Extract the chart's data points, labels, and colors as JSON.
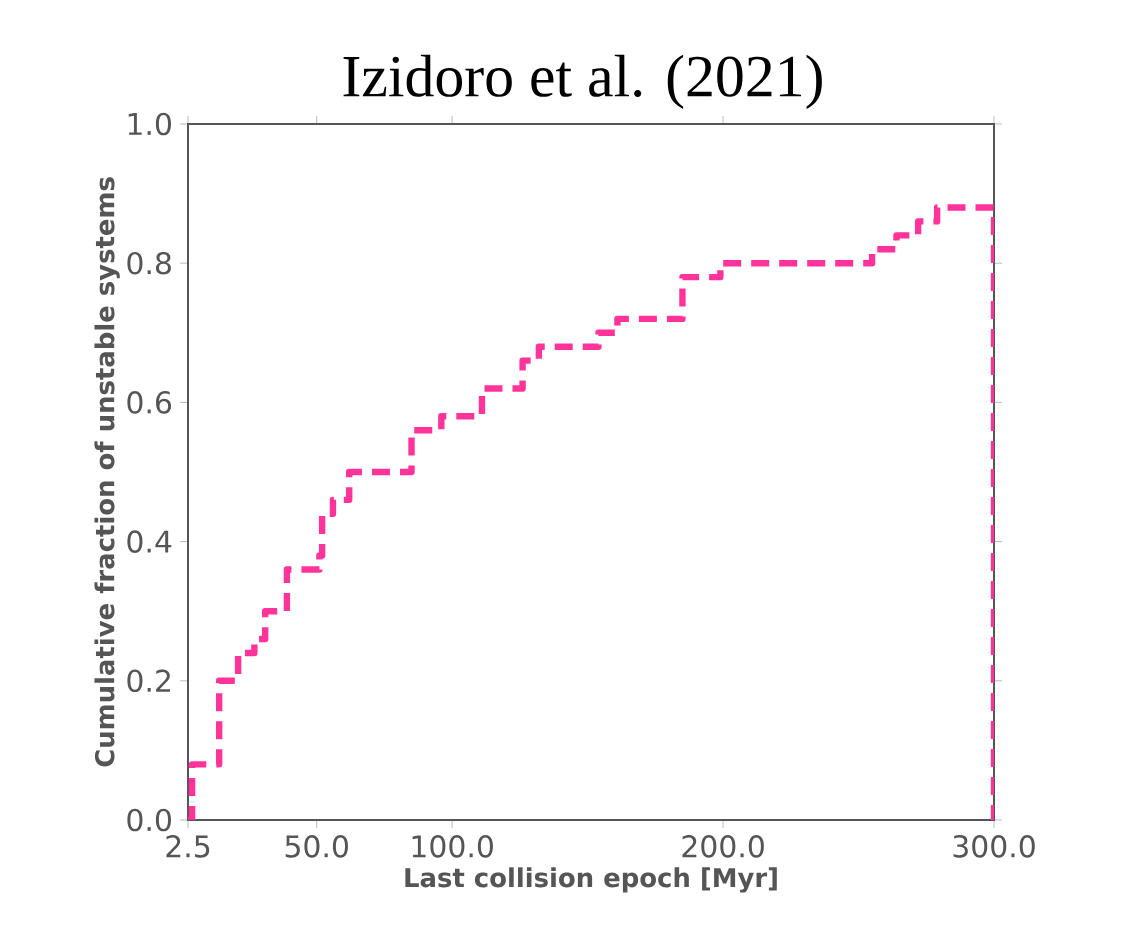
{
  "chart_data": {
    "type": "step",
    "title": "Izidoro et al. (2021)",
    "xlabel": "Last collision epoch [Myr]",
    "ylabel": "Cumulative fraction of unstable systems",
    "x": [
      2.5,
      4,
      14,
      21,
      27,
      31,
      39,
      51,
      52,
      56,
      62,
      85,
      96,
      111,
      126,
      132,
      154,
      161,
      185,
      199,
      255,
      264,
      272,
      279,
      300,
      300
    ],
    "values": [
      0,
      0.08,
      0.2,
      0.24,
      0.26,
      0.3,
      0.36,
      0.38,
      0.44,
      0.46,
      0.5,
      0.56,
      0.58,
      0.62,
      0.66,
      0.68,
      0.7,
      0.72,
      0.78,
      0.8,
      0.82,
      0.84,
      0.86,
      0.88,
      0.88,
      0
    ],
    "color": "#ff3399",
    "line_style": "dashed",
    "grid": false,
    "xlim": [
      2.5,
      300
    ],
    "ylim": [
      0,
      1
    ],
    "xticks": [
      2.5,
      {
        "value": 50,
        "label": "50.0"
      },
      {
        "value": 100,
        "label": "100.0"
      },
      {
        "value": 200,
        "label": "200.0"
      },
      {
        "value": 300,
        "label": "300.0"
      }
    ],
    "yticks": [
      {
        "value": 0,
        "label": "0.0"
      },
      0.2,
      0.4,
      0.6,
      0.8,
      {
        "value": 1,
        "label": "1.0"
      }
    ]
  }
}
